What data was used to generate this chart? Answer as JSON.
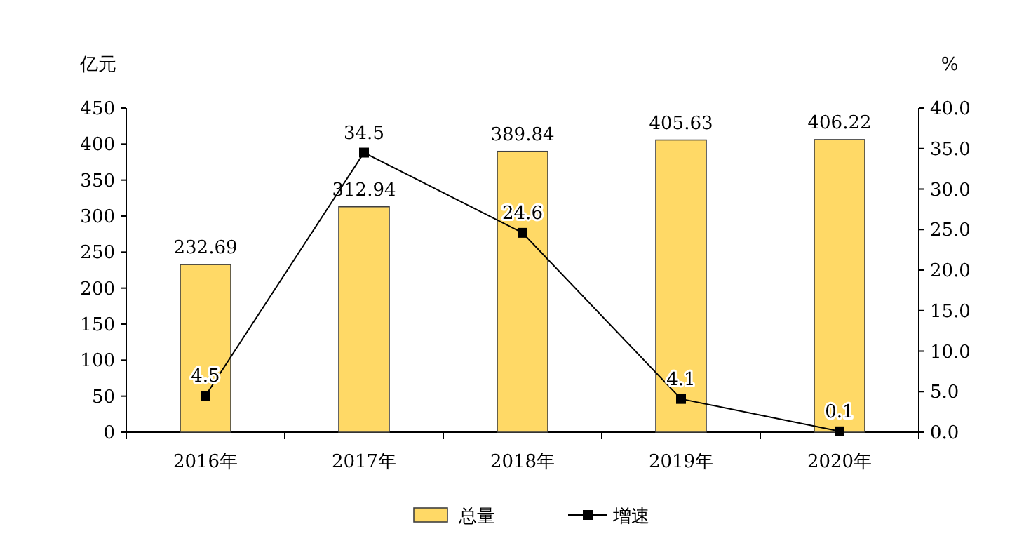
{
  "chart_data": {
    "type": "bar",
    "categories": [
      "2016年",
      "2017年",
      "2018年",
      "2019年",
      "2020年"
    ],
    "ylabel": "亿元",
    "y2label": "%",
    "series": [
      {
        "name": "总量",
        "color": "#ffd966",
        "values": [
          232.69,
          312.94,
          389.84,
          405.63,
          406.22
        ]
      },
      {
        "name": "增速",
        "type": "line",
        "axis": "y2",
        "color": "#000000",
        "marker": "square",
        "values": [
          4.5,
          34.5,
          24.6,
          4.1,
          0.1
        ]
      }
    ],
    "ylim": [
      0,
      450
    ],
    "yticks": [
      0,
      50,
      100,
      150,
      200,
      250,
      300,
      350,
      400,
      450
    ],
    "y2lim": [
      0,
      40
    ],
    "y2ticks": [
      {
        "value": 0,
        "label": "0.0"
      },
      {
        "value": 5,
        "label": "5.0"
      },
      {
        "value": 10,
        "label": "10.0"
      },
      {
        "value": 15,
        "label": "15.0"
      },
      {
        "value": 20,
        "label": "20.0"
      },
      {
        "value": 25,
        "label": "25.0"
      },
      {
        "value": 30,
        "label": "30.0"
      },
      {
        "value": 35,
        "label": "35.0"
      },
      {
        "value": 40,
        "label": "40.0"
      }
    ],
    "data_labels": true,
    "legend": "bottom",
    "grid": false
  }
}
